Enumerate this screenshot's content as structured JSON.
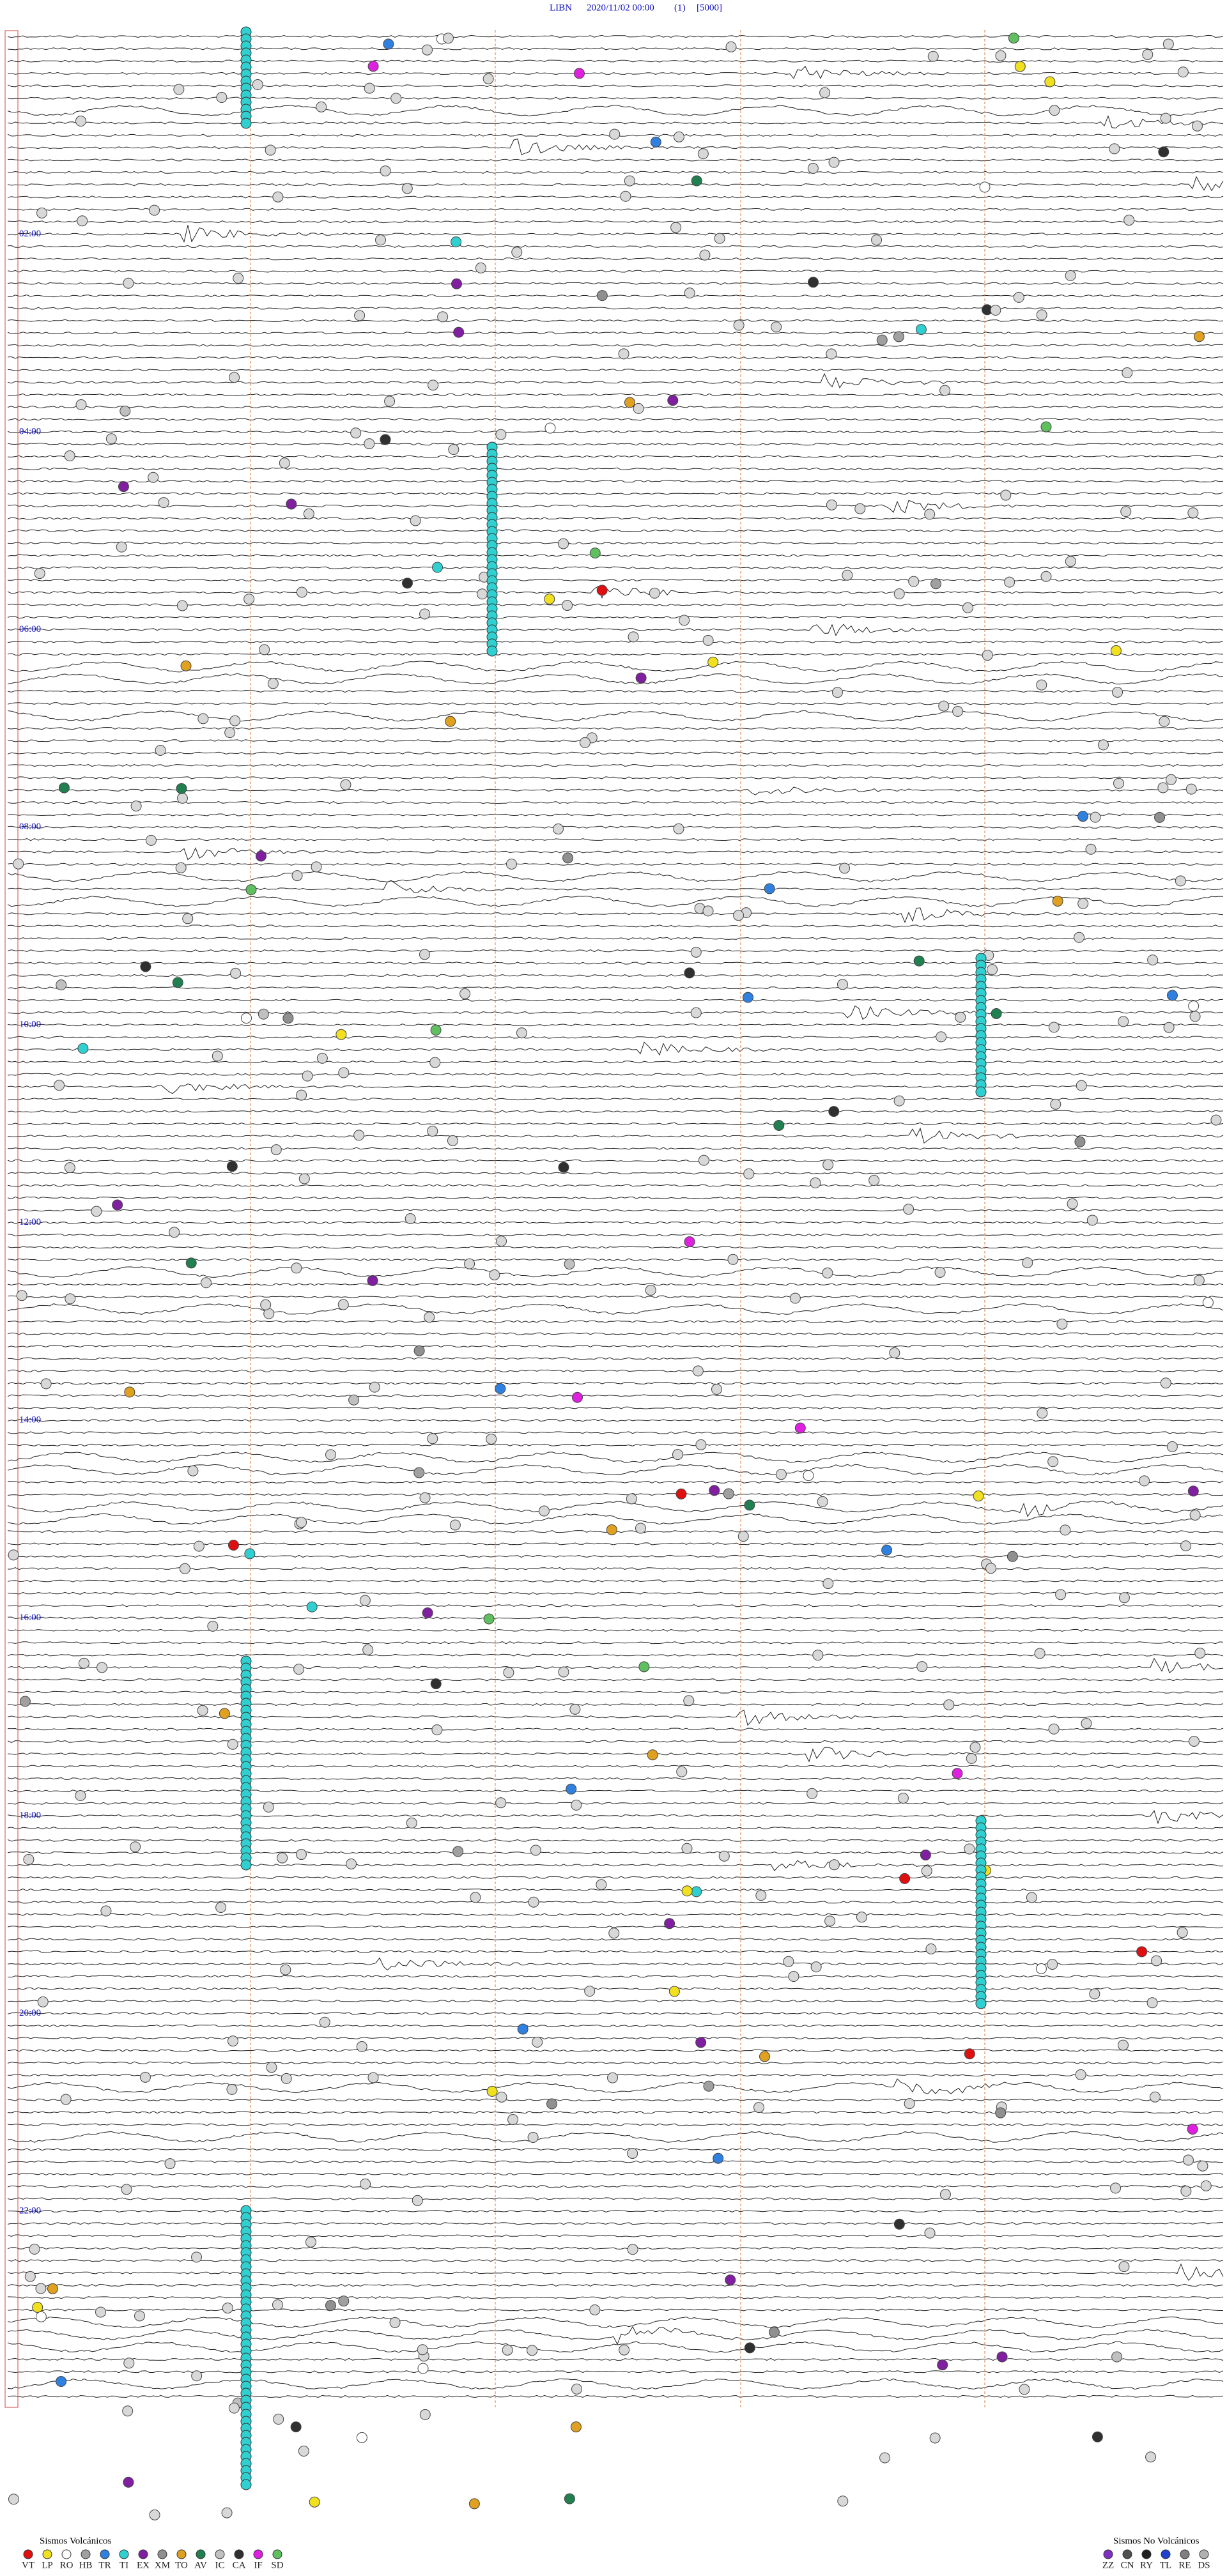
{
  "header": {
    "station": "LIBN",
    "datetime": "2020/11/02 00:00",
    "channel": "(1)",
    "scale": "[5000]"
  },
  "time_labels": [
    "02:00",
    "04:00",
    "06:00",
    "08:00",
    "10:00",
    "12:00",
    "14:00",
    "16:00",
    "18:00",
    "20:00",
    "22:00"
  ],
  "legend": {
    "volcanic": {
      "title": "Sismos Volcánicos",
      "codes": [
        {
          "code": "VT",
          "color": "#e01010"
        },
        {
          "code": "LP",
          "color": "#f0e020"
        },
        {
          "code": "RO",
          "color": "#ffffff"
        },
        {
          "code": "HB",
          "color": "#a0a0a0"
        },
        {
          "code": "TR",
          "color": "#3080e0"
        },
        {
          "code": "TI",
          "color": "#30d0d0"
        },
        {
          "code": "EX",
          "color": "#8020a0"
        },
        {
          "code": "XM",
          "color": "#909090"
        },
        {
          "code": "TO",
          "color": "#e0a020"
        },
        {
          "code": "AV",
          "color": "#208050"
        },
        {
          "code": "IC",
          "color": "#c0c0c0"
        },
        {
          "code": "CA",
          "color": "#303030"
        },
        {
          "code": "IF",
          "color": "#e020e0"
        },
        {
          "code": "SD",
          "color": "#60c060"
        }
      ]
    },
    "non_volcanic": {
      "title": "Sismos No Volcánicos",
      "codes": [
        {
          "code": "ZZ",
          "color": "#8030c0"
        },
        {
          "code": "CN",
          "color": "#505050"
        },
        {
          "code": "RY",
          "color": "#202020"
        },
        {
          "code": "TL",
          "color": "#2040d0"
        },
        {
          "code": "RE",
          "color": "#808080"
        },
        {
          "code": "DS",
          "color": "#b0b0b0"
        }
      ]
    }
  }
}
